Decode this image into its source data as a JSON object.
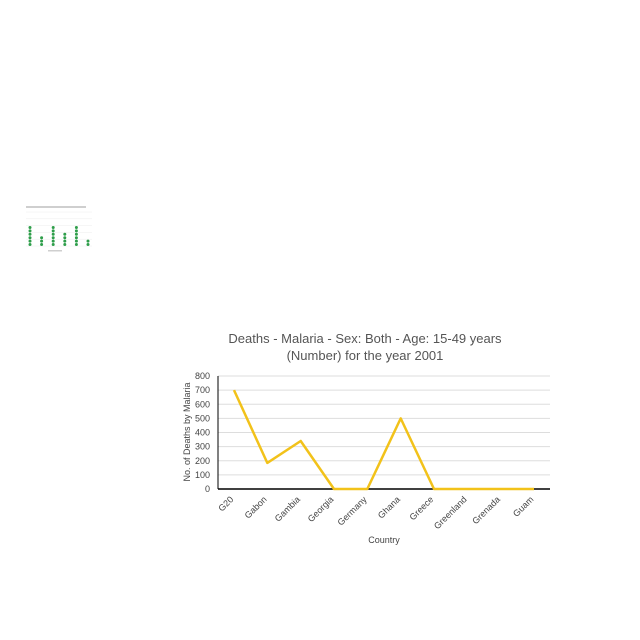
{
  "chart_data": [
    {
      "type": "scatter",
      "title": "",
      "xlabel": "",
      "ylabel": "",
      "categories": [
        "1",
        "2",
        "3",
        "4",
        "5",
        "6"
      ],
      "series": [
        {
          "values": [
            6,
            3,
            6,
            4,
            6,
            2
          ]
        }
      ],
      "ylim": [
        0,
        10
      ],
      "grid": true,
      "colors": {
        "marker": "#2e9e4a"
      }
    },
    {
      "type": "line",
      "title_lines": [
        "Deaths - Malaria - Sex: Both - Age: 15-49 years",
        "(Number) for the year 2001"
      ],
      "xlabel": "Country",
      "ylabel": "No. of Deaths by Malaria",
      "categories": [
        "G20",
        "Gabon",
        "Gambia",
        "Georgia",
        "Germany",
        "Ghana",
        "Greece",
        "Greenland",
        "Grenada",
        "Guam"
      ],
      "series": [
        {
          "values": [
            700,
            185,
            340,
            0,
            0,
            500,
            0,
            0,
            0,
            0
          ]
        }
      ],
      "ylim": [
        0,
        800
      ],
      "yticks": [
        "0",
        "100",
        "200",
        "300",
        "400",
        "500",
        "600",
        "700",
        "800"
      ],
      "grid": true,
      "colors": {
        "line": "#f2c21a",
        "grid": "#dddddd",
        "axis": "#000000"
      }
    }
  ]
}
